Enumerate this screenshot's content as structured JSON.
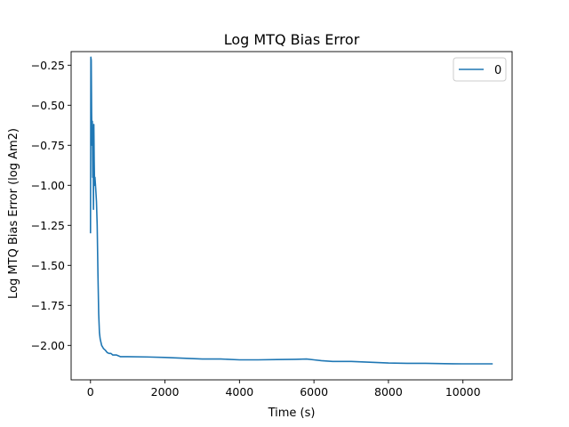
{
  "chart_data": {
    "type": "line",
    "title": "Log MTQ Bias Error",
    "xlabel": "Time (s)",
    "ylabel": "Log MTQ Bias Error (log Am2)",
    "xlim": [
      -520,
      11320
    ],
    "ylim": [
      -2.215,
      -0.165
    ],
    "xticks": [
      0,
      2000,
      4000,
      6000,
      8000,
      10000
    ],
    "xtick_labels": [
      "0",
      "2000",
      "4000",
      "6000",
      "8000",
      "10000"
    ],
    "yticks": [
      -2.0,
      -1.75,
      -1.5,
      -1.25,
      -1.0,
      -0.75,
      -0.5,
      -0.25
    ],
    "ytick_labels": [
      "−2.00",
      "−1.75",
      "−1.50",
      "−1.25",
      "−1.00",
      "−0.75",
      "−0.50",
      "−0.25"
    ],
    "grid": false,
    "legend": {
      "position": "top-right",
      "entries": [
        "0"
      ]
    },
    "colors": {
      "series": "#1f77b4"
    },
    "series": [
      {
        "name": "0",
        "x": [
          0,
          10,
          20,
          30,
          40,
          50,
          60,
          70,
          80,
          90,
          100,
          110,
          120,
          140,
          160,
          180,
          200,
          220,
          240,
          260,
          280,
          300,
          350,
          400,
          450,
          500,
          550,
          600,
          700,
          800,
          1000,
          1500,
          2000,
          2500,
          3000,
          3500,
          4000,
          4500,
          5000,
          5500,
          5800,
          6000,
          6200,
          6500,
          7000,
          7500,
          8000,
          8500,
          9000,
          9500,
          10000,
          10500,
          10800
        ],
        "y": [
          -1.3,
          -0.2,
          -0.22,
          -0.55,
          -0.75,
          -0.6,
          -0.95,
          -0.7,
          -1.15,
          -0.62,
          -0.85,
          -1.0,
          -0.95,
          -1.02,
          -1.1,
          -1.25,
          -1.55,
          -1.8,
          -1.92,
          -1.96,
          -1.98,
          -2.0,
          -2.02,
          -2.03,
          -2.045,
          -2.05,
          -2.05,
          -2.06,
          -2.06,
          -2.07,
          -2.07,
          -2.072,
          -2.075,
          -2.08,
          -2.085,
          -2.085,
          -2.09,
          -2.09,
          -2.088,
          -2.087,
          -2.085,
          -2.09,
          -2.095,
          -2.1,
          -2.1,
          -2.105,
          -2.11,
          -2.112,
          -2.112,
          -2.114,
          -2.115,
          -2.115,
          -2.115
        ]
      }
    ]
  }
}
